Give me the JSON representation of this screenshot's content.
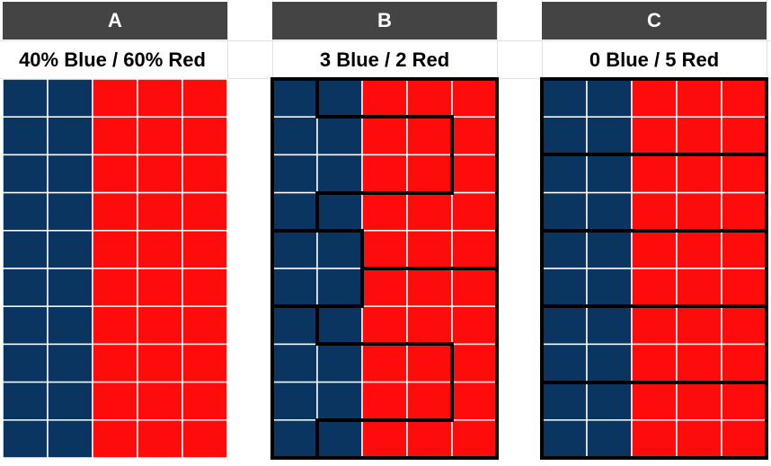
{
  "panels": [
    {
      "header": "A",
      "caption": "40% Blue / 60% Red"
    },
    {
      "header": "B",
      "caption": "3 Blue / 2 Red"
    },
    {
      "header": "C",
      "caption": "0 Blue / 5 Red"
    }
  ]
}
